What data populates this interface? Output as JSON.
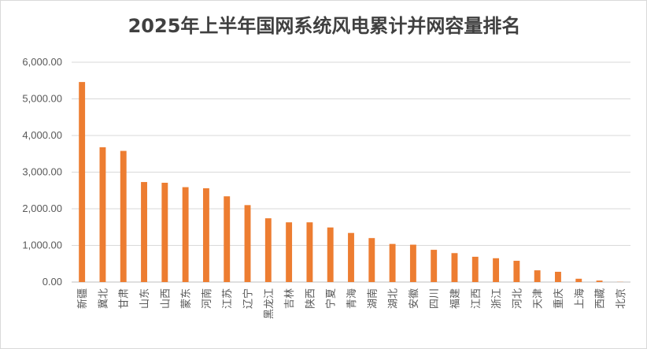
{
  "chart_data": {
    "type": "bar",
    "title": "2025年上半年国网系统风电累计并网容量排名",
    "xlabel": "",
    "ylabel": "",
    "ylim": [
      0,
      6000
    ],
    "yticks": [
      "0.00",
      "1,000.00",
      "2,000.00",
      "3,000.00",
      "4,000.00",
      "5,000.00",
      "6,000.00"
    ],
    "grid": true,
    "bar_color": "#ED7D31",
    "categories": [
      "新疆",
      "冀北",
      "甘肃",
      "山东",
      "山西",
      "蒙东",
      "河南",
      "江苏",
      "辽宁",
      "黑龙江",
      "吉林",
      "陕西",
      "宁夏",
      "青海",
      "湖南",
      "湖北",
      "安徽",
      "四川",
      "福建",
      "江西",
      "浙江",
      "河北",
      "天津",
      "重庆",
      "上海",
      "西藏",
      "北京"
    ],
    "values": [
      5460,
      3680,
      3580,
      2730,
      2710,
      2590,
      2560,
      2340,
      2100,
      1740,
      1630,
      1630,
      1490,
      1340,
      1200,
      1040,
      1020,
      880,
      790,
      690,
      650,
      580,
      320,
      280,
      90,
      40,
      5
    ]
  }
}
